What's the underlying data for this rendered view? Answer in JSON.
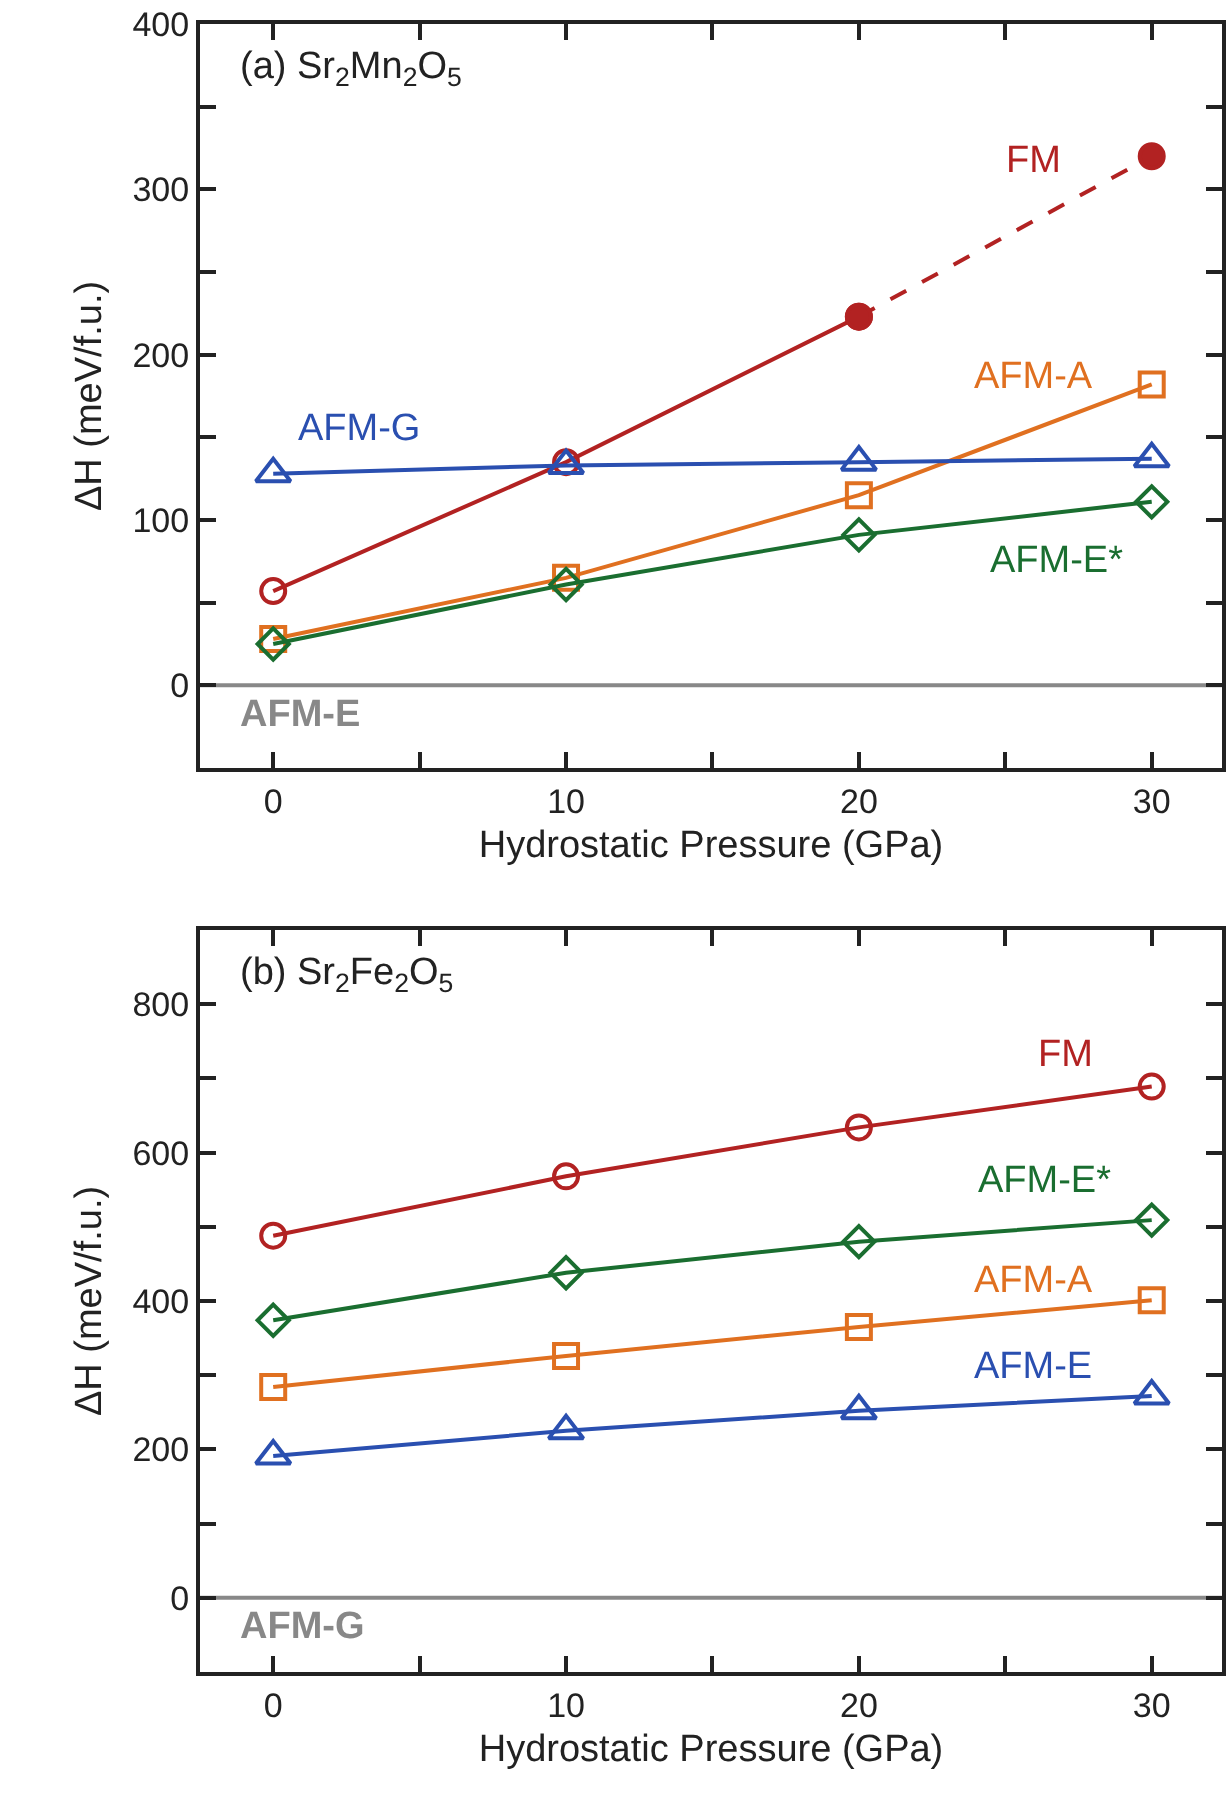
{
  "chart_data": [
    {
      "type": "line",
      "title": "(a) Sr$_{2}$Mn$_{2}$O$_{5}$",
      "xlabel": "Hydrostatic Pressure (GPa)",
      "ylabel": "ΔH (meV/f.u.)",
      "x": [
        0,
        10,
        20,
        30
      ],
      "xlim": [
        -2.5,
        32.4
      ],
      "ylim": [
        -50,
        400
      ],
      "xticks": [
        0,
        {
          "value": 5,
          "label": null
        },
        10,
        {
          "value": 15,
          "label": null
        },
        20,
        {
          "value": 25,
          "label": null
        },
        30
      ],
      "yticks": [
        0,
        {
          "value": 50,
          "label": null
        },
        100,
        {
          "value": 150,
          "label": null
        },
        200,
        {
          "value": 250,
          "label": null
        },
        300,
        {
          "value": 350,
          "label": null
        },
        400
      ],
      "series": [
        {
          "name": "FM",
          "color": "#b22222",
          "marker": "circle",
          "line_style": "solid",
          "values": [
            57,
            135,
            223,
            null
          ]
        },
        {
          "color": "#b22222",
          "marker": "circle",
          "line_style": "dashed",
          "values": [
            null,
            null,
            223,
            320
          ]
        },
        {
          "name": "AFM-A",
          "color": "#e07020",
          "marker": "square",
          "line_style": "solid",
          "values": [
            28,
            65,
            115,
            182
          ]
        },
        {
          "name": "AFM-G",
          "color": "#2a4fb0",
          "marker": "triangle",
          "line_style": "solid",
          "values": [
            128,
            133,
            135,
            137
          ]
        },
        {
          "name": "AFM-E*",
          "color": "#1a6e30",
          "marker": "diamond",
          "line_style": "solid",
          "values": [
            25,
            61,
            91,
            111
          ]
        }
      ],
      "ref_lines": [
        {
          "axis": "y",
          "value": 0,
          "label": "AFM-E",
          "color": "#888888"
        }
      ],
      "grid": false,
      "legend": false
    },
    {
      "type": "line",
      "title": "(b) Sr$_{2}$Fe$_{2}$O$_{5}$",
      "xlabel": "Hydrostatic Pressure (GPa)",
      "ylabel": "ΔH (meV/f.u.)",
      "x": [
        0,
        10,
        20,
        30
      ],
      "xlim": [
        -2.5,
        32.4
      ],
      "ylim": [
        -100,
        900
      ],
      "xticks": [
        0,
        {
          "value": 5,
          "label": null
        },
        10,
        {
          "value": 15,
          "label": null
        },
        20,
        {
          "value": 25,
          "label": null
        },
        30
      ],
      "yticks": [
        0,
        {
          "value": 100,
          "label": null
        },
        200,
        {
          "value": 300,
          "label": null
        },
        400,
        {
          "value": 500,
          "label": null
        },
        600,
        {
          "value": 700,
          "label": null
        },
        800
      ],
      "series": [
        {
          "name": "FM",
          "color": "#b22222",
          "marker": "circle",
          "line_style": "solid",
          "values": [
            488,
            568,
            634,
            689
          ]
        },
        {
          "name": "AFM-E*",
          "color": "#1a6e30",
          "marker": "diamond",
          "line_style": "solid",
          "values": [
            374,
            438,
            480,
            509
          ]
        },
        {
          "name": "AFM-A",
          "color": "#e07020",
          "marker": "square",
          "line_style": "solid",
          "values": [
            284,
            326,
            365,
            401
          ]
        },
        {
          "name": "AFM-E",
          "color": "#2a4fb0",
          "marker": "triangle",
          "line_style": "solid",
          "values": [
            191,
            225,
            252,
            272
          ]
        }
      ],
      "ref_lines": [
        {
          "axis": "y",
          "value": 0,
          "label": "AFM-G",
          "color": "#888888"
        }
      ],
      "grid": false,
      "legend": false
    }
  ]
}
